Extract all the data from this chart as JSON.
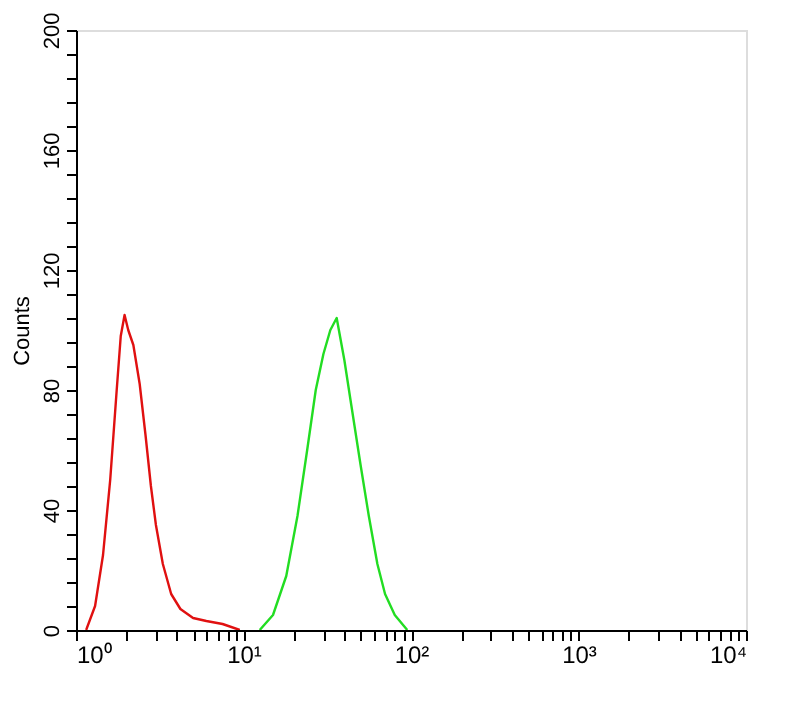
{
  "chart_data": {
    "type": "line",
    "ylabel": "Counts",
    "log": "x",
    "grid": false,
    "marker": "none",
    "line_style": "solid",
    "xlim": [
      1,
      10000
    ],
    "ylim": [
      0,
      200
    ],
    "xticks": [
      {
        "value": 1,
        "label": "10⁰"
      },
      {
        "value": 2,
        "label": null
      },
      {
        "value": 3,
        "label": null
      },
      {
        "value": 4,
        "label": null
      },
      {
        "value": 5,
        "label": null
      },
      {
        "value": 6,
        "label": null
      },
      {
        "value": 7,
        "label": null
      },
      {
        "value": 8,
        "label": null
      },
      {
        "value": 9,
        "label": null
      },
      {
        "value": 10,
        "label": "10¹"
      },
      {
        "value": 20,
        "label": null
      },
      {
        "value": 30,
        "label": null
      },
      {
        "value": 40,
        "label": null
      },
      {
        "value": 50,
        "label": null
      },
      {
        "value": 60,
        "label": null
      },
      {
        "value": 70,
        "label": null
      },
      {
        "value": 80,
        "label": null
      },
      {
        "value": 90,
        "label": null
      },
      {
        "value": 100,
        "label": "10²"
      },
      {
        "value": 200,
        "label": null
      },
      {
        "value": 300,
        "label": null
      },
      {
        "value": 400,
        "label": null
      },
      {
        "value": 500,
        "label": null
      },
      {
        "value": 600,
        "label": null
      },
      {
        "value": 700,
        "label": null
      },
      {
        "value": 800,
        "label": null
      },
      {
        "value": 900,
        "label": null
      },
      {
        "value": 1000,
        "label": "10³"
      },
      {
        "value": 2000,
        "label": null
      },
      {
        "value": 3000,
        "label": null
      },
      {
        "value": 4000,
        "label": null
      },
      {
        "value": 5000,
        "label": null
      },
      {
        "value": 6000,
        "label": null
      },
      {
        "value": 7000,
        "label": null
      },
      {
        "value": 8000,
        "label": null
      },
      {
        "value": 9000,
        "label": null
      },
      {
        "value": 10000,
        "label": "10⁴"
      }
    ],
    "yticks": [
      0,
      {
        "value": 8,
        "label": null
      },
      {
        "value": 16,
        "label": null
      },
      {
        "value": 24,
        "label": null
      },
      {
        "value": 32,
        "label": null
      },
      40,
      {
        "value": 48,
        "label": null
      },
      {
        "value": 56,
        "label": null
      },
      {
        "value": 64,
        "label": null
      },
      {
        "value": 72,
        "label": null
      },
      80,
      {
        "value": 88,
        "label": null
      },
      {
        "value": 96,
        "label": null
      },
      {
        "value": 104,
        "label": null
      },
      {
        "value": 112,
        "label": null
      },
      120,
      {
        "value": 128,
        "label": null
      },
      {
        "value": 136,
        "label": null
      },
      {
        "value": 144,
        "label": null
      },
      {
        "value": 152,
        "label": null
      },
      160,
      {
        "value": 168,
        "label": null
      },
      {
        "value": 176,
        "label": null
      },
      {
        "value": 184,
        "label": null
      },
      {
        "value": 192,
        "label": null
      },
      200
    ],
    "series": [
      {
        "color": "#e01010",
        "x": [
          1.15,
          1.3,
          1.45,
          1.6,
          1.75,
          1.85,
          1.95,
          2.05,
          2.2,
          2.4,
          2.6,
          2.8,
          3.0,
          3.3,
          3.7,
          4.2,
          5,
          6,
          7.5,
          9.5
        ],
        "values": [
          0,
          8,
          25,
          50,
          80,
          98,
          105,
          100,
          95,
          82,
          65,
          48,
          35,
          22,
          12,
          7,
          4,
          3,
          2,
          0
        ]
      },
      {
        "color": "#22dd22",
        "x": [
          12.5,
          15,
          18,
          21,
          24,
          27,
          30,
          33,
          36,
          40,
          44,
          50,
          56,
          63,
          70,
          80,
          95
        ],
        "values": [
          0,
          5,
          18,
          38,
          60,
          80,
          92,
          100,
          104,
          90,
          75,
          55,
          38,
          22,
          12,
          5,
          0
        ]
      }
    ]
  }
}
